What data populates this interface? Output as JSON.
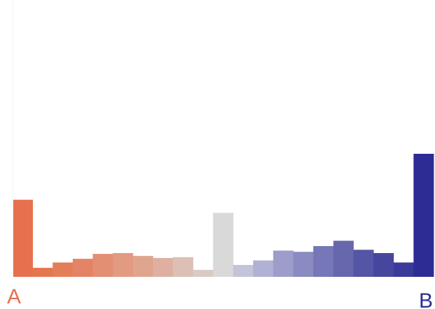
{
  "chart_data": {
    "type": "bar",
    "title": "",
    "xlabel": "",
    "ylabel": "",
    "grid": false,
    "legend": "none",
    "ylim": [
      0,
      30
    ],
    "values": [
      18.8,
      2.2,
      3.5,
      4.4,
      5.6,
      5.8,
      5.1,
      4.6,
      4.8,
      1.7,
      15.6,
      2.9,
      4.0,
      6.4,
      6.1,
      7.5,
      8.8,
      6.6,
      5.8,
      3.5,
      30.0
    ],
    "colors": [
      "#e7714e",
      "#e5774f",
      "#e47e58",
      "#e38466",
      "#e38f74",
      "#e29a80",
      "#e0a58f",
      "#dfb0a1",
      "#dcc0b5",
      "#dac9c4",
      "#d9d9d9",
      "#c3c4d9",
      "#b0b1d4",
      "#9c9dca",
      "#8a8bc1",
      "#7676b8",
      "#6767ae",
      "#5555a6",
      "#46469f",
      "#3a3a9b",
      "#2c2c94"
    ],
    "end_labels": {
      "left": {
        "text": "A",
        "color": "#e7714e"
      },
      "right": {
        "text": "B",
        "color": "#2c2c94"
      }
    }
  }
}
